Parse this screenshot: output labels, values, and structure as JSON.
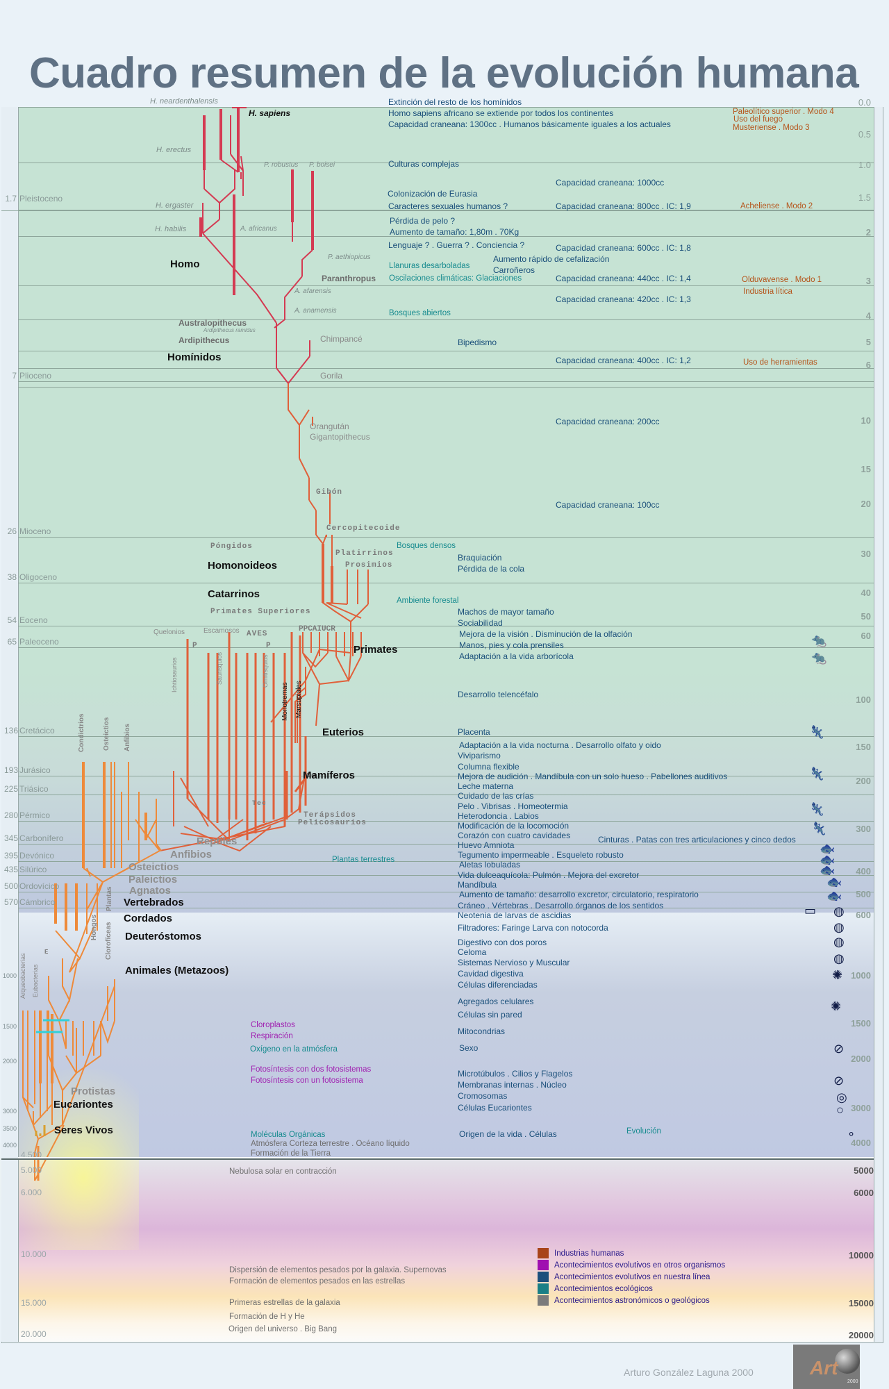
{
  "title": "Cuadro resumen de la evolución humana",
  "epochs": [
    {
      "age": "1.7",
      "name": "Pleistoceno"
    },
    {
      "age": "7",
      "name": "Plioceno"
    },
    {
      "age": "26",
      "name": "Mioceno"
    },
    {
      "age": "38",
      "name": "Oligoceno"
    },
    {
      "age": "54",
      "name": "Eoceno"
    },
    {
      "age": "65",
      "name": "Paleoceno"
    },
    {
      "age": "136",
      "name": "Cretácico"
    },
    {
      "age": "193",
      "name": "Jurásico"
    },
    {
      "age": "225",
      "name": "Triásico"
    },
    {
      "age": "280",
      "name": "Pérmico"
    },
    {
      "age": "345",
      "name": "Carbonífero"
    },
    {
      "age": "395",
      "name": "Devónico"
    },
    {
      "age": "435",
      "name": "Silúrico"
    },
    {
      "age": "500",
      "name": "Ordovícico"
    },
    {
      "age": "570",
      "name": "Cámbrico"
    }
  ],
  "left_scale": [
    "1000",
    "1500",
    "2000",
    "3000",
    "3500",
    "4000"
  ],
  "big_scale": [
    "4.500",
    "5.000",
    "6.000",
    "10.000",
    "15.000",
    "20.000"
  ],
  "right_scale": [
    "0.0",
    "0.5",
    "1.0",
    "1.5",
    "2",
    "3",
    "4",
    "5",
    "6",
    "10",
    "15",
    "20",
    "30",
    "40",
    "50",
    "60",
    "100",
    "150",
    "200",
    "300",
    "400",
    "500",
    "600",
    "1000",
    "1500",
    "2000",
    "3000",
    "4000"
  ],
  "right_scale_cosmic": [
    "5000",
    "6000",
    "10000",
    "15000",
    "20000"
  ],
  "species": {
    "neanderthalensis": "H. neardenthalensis",
    "sapiens": "H. sapiens",
    "erectus": "H. erectus",
    "robustus": "P. robustus",
    "boisei": "P. boisei",
    "ergaster": "H. ergaster",
    "habilis": "H. habilis",
    "africanus": "A. africanus",
    "aethiopicus": "P. aethiopicus",
    "afarensis": "A. afarensis",
    "anamensis": "A. anamensis",
    "ramidus": "Ardipithecus ramidus",
    "chimpance": "Chimpancé",
    "gorila": "Gorila",
    "orangutan": "Orangután",
    "gigantopithecus": "Gigantopithecus",
    "gibon": "Gibón",
    "cercopitecoide": "Cercopitecoide",
    "platirrinos": "Platirrinos",
    "prosimios": "Prosimios",
    "pongidos": "Póngidos",
    "primates_sup": "Primates Superiores",
    "quelonios": "Quelonios",
    "escamosos": "Escamosos",
    "aves": "AVES",
    "p1": "P",
    "p2": "P",
    "ppcaiucr": "PPCAIUCR",
    "ichtiosaurios": "Ichtiosaurios",
    "saurisquios": "Saurisquios",
    "ornitisquios": "Ornitisquios",
    "monotremas": "Monotremas",
    "marsupiales": "Marsupiales",
    "co": "Co",
    "tec": "Tec",
    "terapsidos": "Terápsidos",
    "pelicosaurios": "Pelicosaurios",
    "condictrios": "Condictrios",
    "osteictios_v": "Osteictios",
    "anfibios_v": "Anfibios",
    "plantas": "Plantas",
    "hongos": "Hongos",
    "cloroficeas": "Clorofíceas",
    "arqueobacterias": "Arqueobacterias",
    "eubacterias": "Eubacterias",
    "e": "E"
  },
  "groups": {
    "homo": "Homo",
    "paranthropus": "Paranthropus",
    "australopithecus": "Australopithecus",
    "ardipithecus": "Ardipithecus",
    "hominidos": "Homínidos",
    "homonoideos": "Homonoideos",
    "catarrinos": "Catarrinos",
    "primates": "Primates",
    "euterios": "Euterios",
    "mamiferos": "Mamíferos",
    "reptiles": "Reptiles",
    "anfibios": "Anfibios",
    "osteictios": "Osteictios",
    "paleictios": "Paleictios",
    "agnatos": "Agnatos",
    "vertebrados": "Vertebrados",
    "cordados": "Cordados",
    "deuterostomos": "Deuteróstomos",
    "animales": "Animales (Metazoos)",
    "protistas": "Protistas",
    "eucariontes": "Eucariontes",
    "seres_vivos": "Seres Vivos"
  },
  "events_our_line": [
    "Extinción del resto de los homínidos",
    "Homo sapiens africano se extiende por todos los continentes",
    "Capacidad craneana: 1300cc . Humanos básicamente iguales a los actuales",
    "Culturas complejas",
    "Colonización de Eurasia",
    "Caracteres sexuales humanos ?",
    "Pérdida de pelo ?",
    "Aumento de tamaño: 1,80m . 70Kg",
    "Lenguaje ? . Guerra ? . Conciencia ?",
    "Aumento rápido de cefalización",
    "Carroñeros",
    "Bipedismo",
    "Braquiación",
    "Pérdida de la cola",
    "Machos de mayor tamaño",
    "Sociabilidad",
    "Mejora de la visión . Disminución de la olfación",
    "Manos, pies y cola prensiles",
    "Adaptación a la vida arborícola",
    "Desarrollo telencéfalo",
    "Placenta",
    "Adaptación a la vida nocturna . Desarrollo olfato y oido",
    "Viviparismo",
    "Columna flexible",
    "Mejora de audición . Mandíbula con un solo hueso . Pabellones auditivos",
    "Leche materna",
    "Cuidado de las crías",
    "Pelo . Vibrisas . Homeotermia",
    "Heterodoncia . Labios",
    "Modificación de la locomoción",
    "Corazón con cuatro cavidades",
    "Huevo Amniota",
    "Tegumento impermeable . Esqueleto robusto",
    "Aletas lobuladas",
    "Vida dulceaquícola: Pulmón . Mejora del excretor",
    "Mandíbula",
    "Aumento de tamaño: desarrollo excretor, circulatorio, respiratorio",
    "Cráneo . Vértebras . Desarrollo órganos de los sentidos",
    "Neotenia de larvas de ascidias",
    "Filtradores: Faringe   Larva con notocorda",
    "Digestivo con dos poros",
    "Celoma",
    "Sistemas Nervioso y Muscular",
    "Cavidad digestiva",
    "Células diferenciadas",
    "Agregados celulares",
    "Células sin pared",
    "Mitocondrias",
    "Sexo",
    "Microtúbulos . Cilios y Flagelos",
    "Membranas internas . Núcleo",
    "Cromosomas",
    "Células Eucariontes",
    "Origen de la vida . Células",
    "Cinturas . Patas con tres articulaciones y cinco dedos"
  ],
  "cranial": [
    "Capacidad craneana: 1000cc",
    "Capacidad craneana: 800cc . IC: 1,9",
    "Capacidad craneana: 600cc . IC: 1,8",
    "Capacidad craneana: 440cc . IC: 1,4",
    "Capacidad craneana: 420cc . IC: 1,3",
    "Capacidad craneana: 400cc . IC: 1,2",
    "Capacidad craneana: 200cc",
    "Capacidad craneana: 100cc"
  ],
  "events_ecological": [
    "Llanuras desarboladas",
    "Oscilaciones climáticas: Glaciaciones",
    "Bosques abiertos",
    "Bosques densos",
    "Ambiente forestal",
    "Plantas terrestres",
    "Oxígeno en la atmósfera",
    "Moléculas Orgánicas",
    "Evolución"
  ],
  "events_industries": [
    "Paleolítico superior . Modo 4",
    "Uso del fuego",
    "Musteriense . Modo 3",
    "Acheliense . Modo 2",
    "Olduvavense . Modo 1",
    "Industria lítica",
    "Uso de   herramientas"
  ],
  "events_other": [
    "Cloroplastos",
    "Respiración",
    "Fotosíntesis con dos fotosistemas",
    "Fotosíntesis con un fotosistema"
  ],
  "events_astro": [
    "Atmósfera   Corteza terrestre . Océano líquido",
    "Formación de la Tierra",
    "Nebulosa solar en contracción",
    "Dispersión de elementos pesados por la galaxia. Supernovas",
    "Formación de elementos pesados en las estrellas",
    "Primeras estrellas de la galaxia",
    "Formación de H y He",
    "Origen del universo . Big Bang"
  ],
  "legend": [
    {
      "label": "Industrias humanas",
      "color": "#a8441a"
    },
    {
      "label": "Acontecimientos evolutivos en otros organismos",
      "color": "#a010b0"
    },
    {
      "label": "Acontecimientos evolutivos en nuestra línea",
      "color": "#1c4f7c"
    },
    {
      "label": "Acontecimientos ecológicos",
      "color": "#1a7f86"
    },
    {
      "label": "Acontecimientos astronómicos o geológicos",
      "color": "#7b7b7b"
    }
  ],
  "colors": {
    "hominid_branch": "#d43a52",
    "primate_branch": "#e0603a",
    "early_branch": "#ee9a3a"
  },
  "author": "Arturo González Laguna 2000",
  "logo": {
    "text": "Art",
    "year": "2000"
  }
}
